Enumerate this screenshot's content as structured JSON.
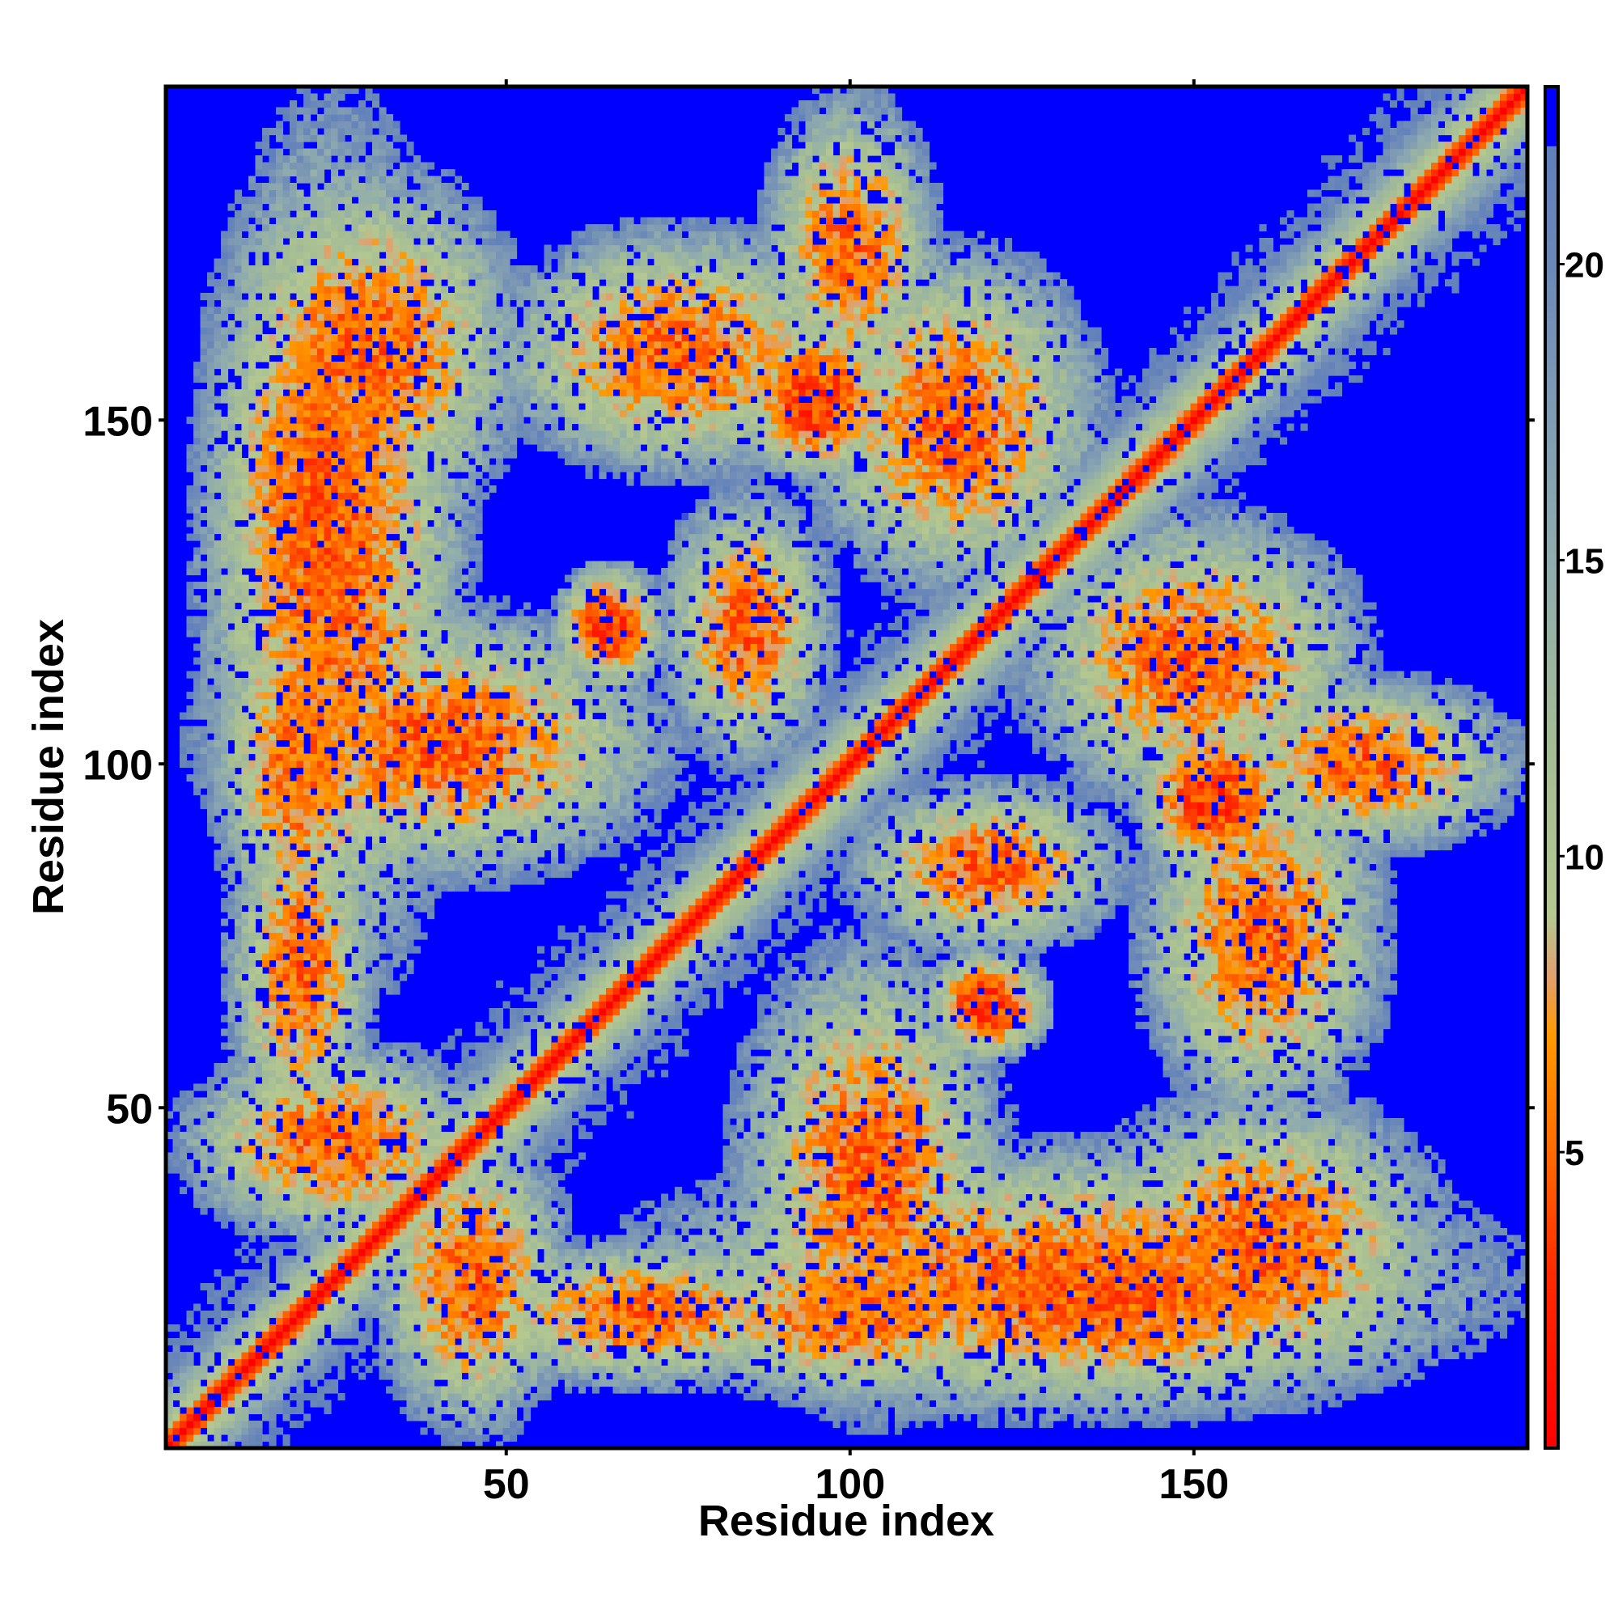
{
  "chart_data": {
    "type": "heatmap",
    "title": "",
    "xlabel": "Residue index",
    "ylabel": "Residue index",
    "xlim": [
      1,
      198
    ],
    "ylim": [
      1,
      198
    ],
    "x_ticks": [
      50,
      100,
      150
    ],
    "y_ticks": [
      50,
      100,
      150
    ],
    "x_tick_labels": [
      "50",
      "100",
      "150"
    ],
    "y_tick_labels": [
      "50",
      "100",
      "150"
    ],
    "matrix_size": 198,
    "symmetric": true,
    "colorbar": {
      "range": [
        0,
        23
      ],
      "ticks": [
        5,
        10,
        15,
        20
      ],
      "tick_labels": [
        "5",
        "10",
        "15",
        "20"
      ],
      "stops": [
        {
          "value": 0,
          "color": "#ff0000"
        },
        {
          "value": 3,
          "color": "#ff2a00"
        },
        {
          "value": 5,
          "color": "#ff6a00"
        },
        {
          "value": 7,
          "color": "#ff9a00"
        },
        {
          "value": 8,
          "color": "#e0a070"
        },
        {
          "value": 9,
          "color": "#b4c890"
        },
        {
          "value": 12,
          "color": "#a4bc96"
        },
        {
          "value": 15,
          "color": "#90acae"
        },
        {
          "value": 18,
          "color": "#7c98b4"
        },
        {
          "value": 20,
          "color": "#6c88b8"
        },
        {
          "value": 21.99,
          "color": "#6080bc"
        },
        {
          "value": 22,
          "color": "#0000ff"
        },
        {
          "value": 23,
          "color": "#0000ff"
        }
      ],
      "cutoff": 22
    },
    "contact_regions": [
      {
        "i": 95,
        "j": 153,
        "ri": 13,
        "rj": 13,
        "min": 3
      },
      {
        "i": 153,
        "j": 95,
        "ri": 13,
        "rj": 13,
        "min": 3
      },
      {
        "i": 120,
        "j": 65,
        "ri": 10,
        "rj": 9,
        "min": 3
      },
      {
        "i": 65,
        "j": 120,
        "ri": 9,
        "rj": 10,
        "min": 3
      },
      {
        "i": 75,
        "j": 160,
        "ri": 30,
        "rj": 20,
        "min": 5
      },
      {
        "i": 160,
        "j": 75,
        "ri": 20,
        "rj": 30,
        "min": 5
      },
      {
        "i": 40,
        "j": 103,
        "ri": 38,
        "rj": 22,
        "min": 5
      },
      {
        "i": 103,
        "j": 40,
        "ri": 22,
        "rj": 38,
        "min": 5
      },
      {
        "i": 115,
        "j": 150,
        "ri": 24,
        "rj": 28,
        "min": 5
      },
      {
        "i": 150,
        "j": 115,
        "ri": 28,
        "rj": 24,
        "min": 5
      },
      {
        "i": 130,
        "j": 25,
        "ri": 70,
        "rj": 22,
        "min": 5
      },
      {
        "i": 25,
        "j": 130,
        "ri": 22,
        "rj": 70,
        "min": 5
      },
      {
        "i": 160,
        "j": 30,
        "ri": 30,
        "rj": 25,
        "min": 5
      },
      {
        "i": 30,
        "j": 160,
        "ri": 25,
        "rj": 30,
        "min": 5
      },
      {
        "i": 175,
        "j": 100,
        "ri": 25,
        "rj": 14,
        "min": 5
      },
      {
        "i": 100,
        "j": 175,
        "ri": 14,
        "rj": 25,
        "min": 5
      },
      {
        "i": 85,
        "j": 120,
        "ri": 14,
        "rj": 22,
        "min": 5
      },
      {
        "i": 120,
        "j": 85,
        "ri": 22,
        "rj": 14,
        "min": 5
      },
      {
        "i": 25,
        "j": 45,
        "ri": 25,
        "rj": 16,
        "min": 5
      },
      {
        "i": 45,
        "j": 25,
        "ri": 16,
        "rj": 25,
        "min": 5
      },
      {
        "i": 70,
        "j": 20,
        "ri": 28,
        "rj": 12,
        "min": 5
      },
      {
        "i": 20,
        "j": 70,
        "ri": 12,
        "rj": 28,
        "min": 5
      },
      {
        "i": 100,
        "j": 20,
        "ri": 30,
        "rj": 14,
        "min": 5
      },
      {
        "i": 20,
        "j": 100,
        "ri": 14,
        "rj": 30,
        "min": 5
      },
      {
        "i": 140,
        "j": 22,
        "ri": 45,
        "rj": 18,
        "min": 5
      },
      {
        "i": 22,
        "j": 140,
        "ri": 18,
        "rj": 45,
        "min": 5
      }
    ]
  }
}
